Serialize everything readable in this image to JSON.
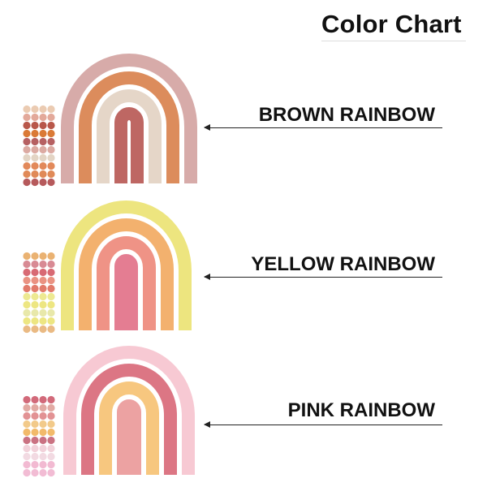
{
  "title": "Color Chart",
  "rainbows": [
    {
      "label": "BROWN RAINBOW",
      "arch_colors": [
        "#d4a4a2",
        "#d9824e",
        "#e3d3c3",
        "#b85a56"
      ],
      "dot_rows": [
        "#ebcbb2",
        "#e3a99a",
        "#b8574a",
        "#da7a36",
        "#b66062",
        "#dcaaa2",
        "#e3d4c4",
        "#e2895a",
        "#e08a58",
        "#b65a5c"
      ]
    },
    {
      "label": "YELLOW RAINBOW",
      "arch_colors": [
        "#ece374",
        "#f2aa62",
        "#ee8a7c",
        "#e27289"
      ],
      "dot_rows": [
        "#eab272",
        "#d88a94",
        "#d86a74",
        "#ea9282",
        "#e27a6a",
        "#ede992",
        "#ede682",
        "#e8e8aa",
        "#ede682",
        "#eaba84"
      ]
    },
    {
      "label": "PINK RAINBOW",
      "arch_colors": [
        "#f6c4cf",
        "#d96a7a",
        "#f6c274",
        "#ea9a9a"
      ],
      "dot_rows": [
        "#d26a7a",
        "#e2aaa4",
        "#e29294",
        "#f2ca8a",
        "#f2ba6a",
        "#ca7282",
        "#f2d2da",
        "#f2dae2",
        "#f2bad2",
        "#f2bcd4"
      ]
    }
  ]
}
